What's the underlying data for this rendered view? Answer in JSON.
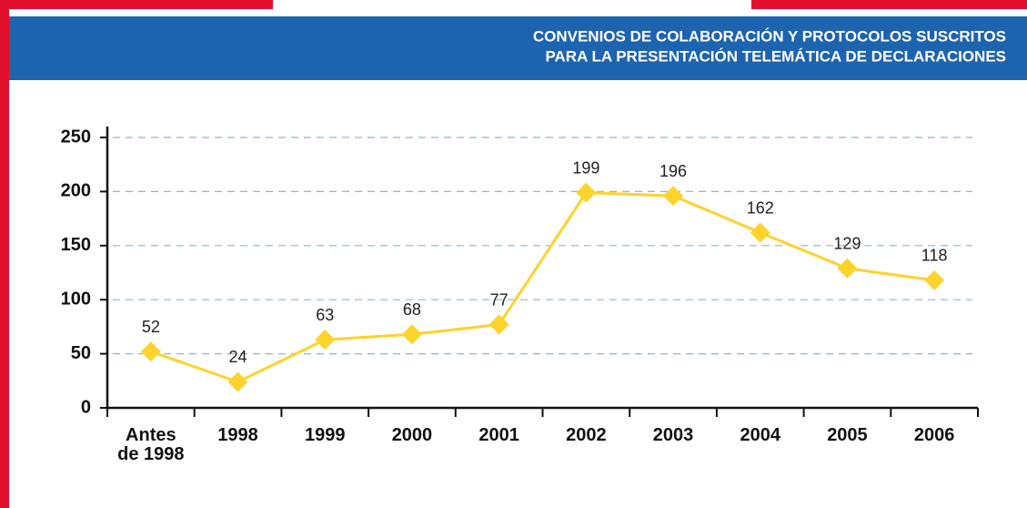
{
  "chart_data": {
    "type": "line",
    "title_lines": [
      "CONVENIOS DE COLABORACIÓN Y PROTOCOLOS SUSCRITOS",
      "PARA LA PRESENTACIÓN TELEMÁTICA DE DECLARACIONES"
    ],
    "categories": [
      "Antes de 1998",
      "1998",
      "1999",
      "2000",
      "2001",
      "2002",
      "2003",
      "2004",
      "2005",
      "2006"
    ],
    "values": [
      52,
      24,
      63,
      68,
      77,
      199,
      196,
      162,
      129,
      118
    ],
    "color": "#fdd32c",
    "ylim": [
      0,
      250
    ],
    "yticks": [
      0,
      50,
      100,
      150,
      200,
      250
    ],
    "grid": true
  }
}
